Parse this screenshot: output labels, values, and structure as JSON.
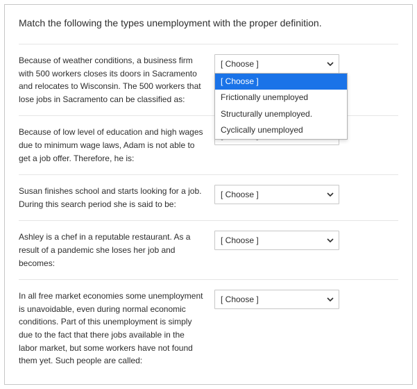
{
  "title": "Match the following the types unemployment with the proper definition.",
  "placeholder": "[ Choose ]",
  "dropdown_options": [
    "[ Choose ]",
    "Frictionally unemployed",
    "Structurally unemployed.",
    "Cyclically unemployed"
  ],
  "highlighted_option_index": 0,
  "open_dropdown_row": 0,
  "rows": [
    {
      "prompt": "Because of weather conditions, a business firm with 500 workers closes its doors in Sacramento and relocates to Wisconsin. The 500 workers that lose jobs in Sacramento can be classified as:"
    },
    {
      "prompt": "Because of low level of education and high wages due to minimum wage laws, Adam is not able to get a job offer. Therefore, he is:"
    },
    {
      "prompt": "Susan finishes school and starts looking for a job. During this search period she is said to be:"
    },
    {
      "prompt": "Ashley is a chef in a reputable restaurant. As a result of a pandemic she loses her job and becomes:"
    },
    {
      "prompt": "In all free market economies some unemployment is unavoidable, even during normal economic conditions. Part of this unemployment is simply due to the fact that there jobs available in the labor market, but some workers have not found them yet. Such people are called:"
    }
  ],
  "chevron_color": "#2d2d2d"
}
